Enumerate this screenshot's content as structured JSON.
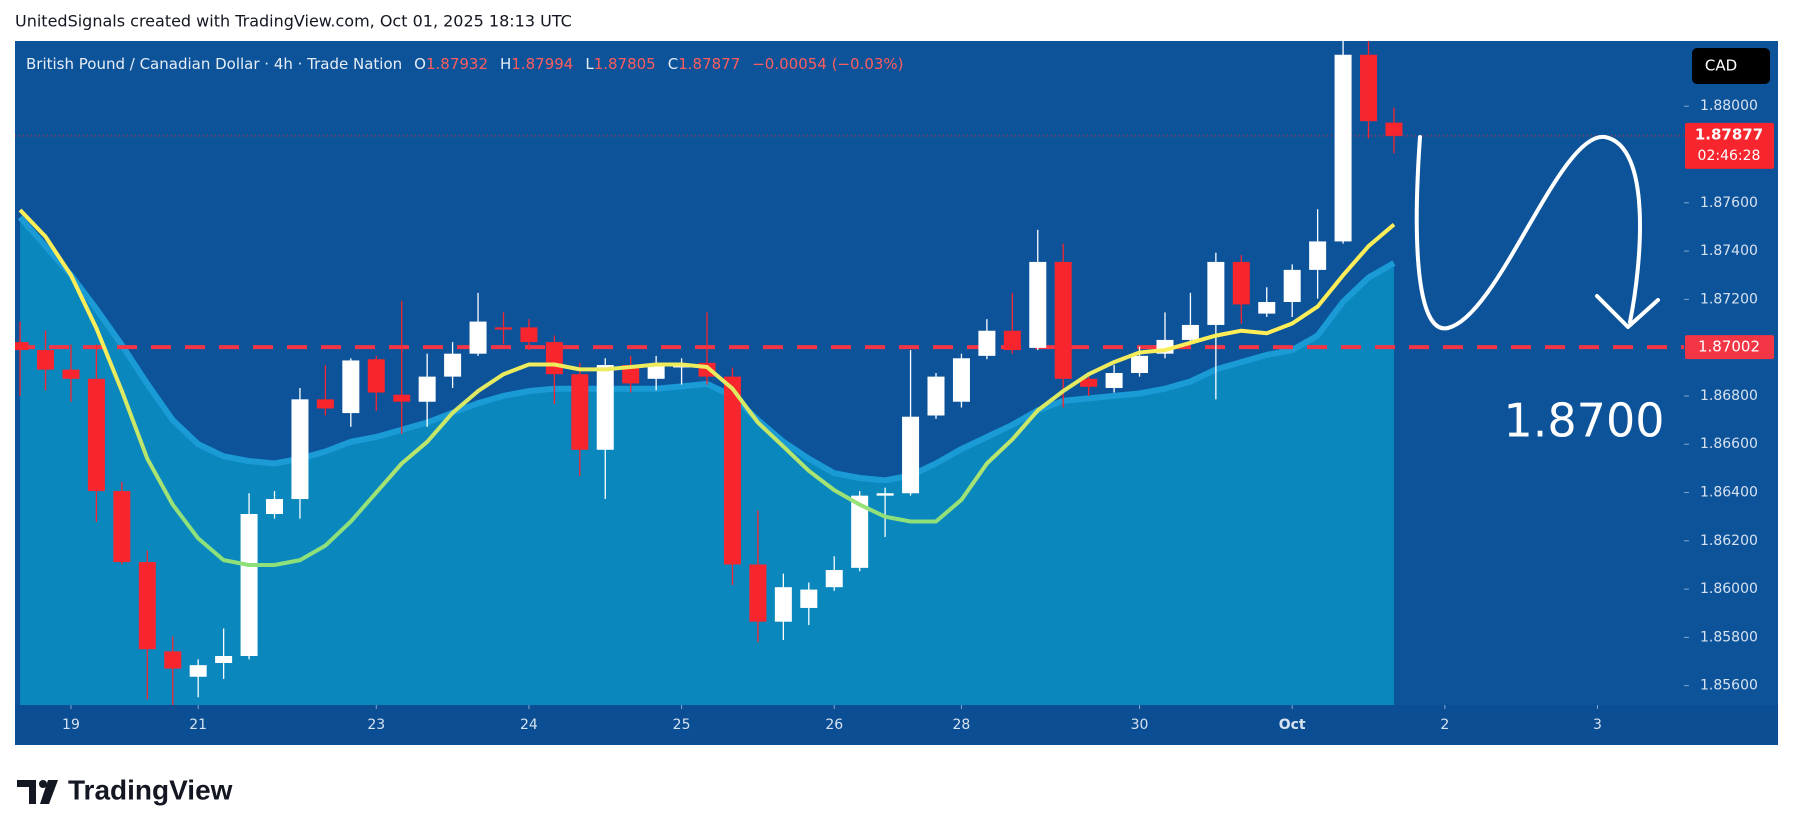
{
  "header": "UnitedSignals created with TradingView.com, Oct 01, 2025 18:13 UTC",
  "logo": "TradingView",
  "chart_data": {
    "type": "candlestick",
    "title": "British Pound / Canadian Dollar · 4h · Trade Nation",
    "ohlc_labels": [
      "O",
      "H",
      "L",
      "C"
    ],
    "change": "−0.00054 (−0.03%)",
    "currency": "CAD",
    "countdown": "02:46:28",
    "up_color": "#ffffff",
    "down_color": "#f7252d",
    "open": [
      1.87023,
      1.8699,
      1.86909,
      1.86871,
      1.86406,
      1.86112,
      1.85742,
      1.85637,
      1.85694,
      1.85723,
      1.86311,
      1.86373,
      1.86786,
      1.86729,
      1.86952,
      1.86805,
      1.86776,
      1.8688,
      1.86975,
      1.87084,
      1.87084,
      1.87023,
      1.8689,
      1.86577,
      1.86928,
      1.86871,
      1.86918,
      1.86937,
      1.8688,
      1.86102,
      1.85865,
      1.85922,
      1.86008,
      1.86088,
      1.86387,
      1.86397,
      1.86719,
      1.86776,
      1.86966,
      1.8707,
      1.86999,
      1.87355,
      1.86871,
      1.86833,
      1.86895,
      1.86975,
      1.87032,
      1.87094,
      1.87355,
      1.87141,
      1.87189,
      1.87322,
      1.8744,
      1.88213,
      1.87932
    ],
    "high": [
      1.87108,
      1.8707,
      1.87013,
      1.87013,
      1.86444,
      1.86159,
      1.85804,
      1.85709,
      1.85837,
      1.86397,
      1.86406,
      1.86833,
      1.86928,
      1.86956,
      1.86966,
      1.87194,
      1.86975,
      1.87023,
      1.87227,
      1.87146,
      1.87118,
      1.87051,
      1.86937,
      1.86956,
      1.86966,
      1.86966,
      1.86956,
      1.87146,
      1.86918,
      1.86325,
      1.86064,
      1.86027,
      1.86136,
      1.86406,
      1.8642,
      1.8699,
      1.86895,
      1.86975,
      1.87118,
      1.87227,
      1.87488,
      1.87431,
      1.8688,
      1.86928,
      1.87004,
      1.87146,
      1.87227,
      1.87393,
      1.87383,
      1.8725,
      1.87345,
      1.87573,
      1.8827,
      1.8827,
      1.87994
    ],
    "low": [
      1.868,
      1.86823,
      1.86776,
      1.86278,
      1.86102,
      1.85543,
      1.85519,
      1.85552,
      1.85628,
      1.85709,
      1.86292,
      1.86292,
      1.86719,
      1.86672,
      1.86738,
      1.86643,
      1.86672,
      1.86833,
      1.86966,
      1.87013,
      1.8699,
      1.86767,
      1.86468,
      1.86373,
      1.86814,
      1.86823,
      1.86847,
      1.86847,
      1.86017,
      1.8578,
      1.85789,
      1.85851,
      1.85993,
      1.86074,
      1.86216,
      1.86387,
      1.86705,
      1.86752,
      1.86952,
      1.86975,
      1.8699,
      1.86752,
      1.868,
      1.86814,
      1.8688,
      1.86956,
      1.87013,
      1.86786,
      1.87099,
      1.87127,
      1.87127,
      1.87203,
      1.87431,
      1.87867,
      1.87805
    ],
    "close": [
      1.8699,
      1.86909,
      1.86871,
      1.86406,
      1.86112,
      1.85751,
      1.85671,
      1.85685,
      1.85723,
      1.86311,
      1.86373,
      1.86786,
      1.86748,
      1.86947,
      1.86814,
      1.86776,
      1.8688,
      1.86975,
      1.87108,
      1.87075,
      1.87023,
      1.8689,
      1.86577,
      1.86928,
      1.86852,
      1.86928,
      1.86928,
      1.8688,
      1.86102,
      1.85865,
      1.86008,
      1.85998,
      1.86079,
      1.86387,
      1.86397,
      1.86714,
      1.8688,
      1.86956,
      1.8707,
      1.8699,
      1.87355,
      1.86871,
      1.86838,
      1.86895,
      1.86966,
      1.87032,
      1.87094,
      1.87355,
      1.87179,
      1.87189,
      1.87322,
      1.8744,
      1.88213,
      1.87938,
      1.87877
    ],
    "ma": {
      "colors": [
        "#ffee58",
        "#8ee07a"
      ],
      "values": [
        1.8757,
        1.8746,
        1.873,
        1.8708,
        1.8682,
        1.8654,
        1.8635,
        1.8621,
        1.8612,
        1.861,
        1.861,
        1.8612,
        1.8618,
        1.8628,
        1.864,
        1.8652,
        1.8661,
        1.8673,
        1.8682,
        1.8689,
        1.8693,
        1.8693,
        1.8691,
        1.8691,
        1.8692,
        1.8693,
        1.8693,
        1.8692,
        1.8683,
        1.8669,
        1.8659,
        1.8649,
        1.8641,
        1.8635,
        1.863,
        1.8628,
        1.8628,
        1.8637,
        1.8652,
        1.8662,
        1.8674,
        1.8682,
        1.8689,
        1.8694,
        1.8698,
        1.8699,
        1.8702,
        1.8705,
        1.8707,
        1.8706,
        1.871,
        1.8717,
        1.873,
        1.8742,
        1.8751
      ]
    },
    "band": {
      "color": "#0a87bd",
      "line_color": "#1a9bd6",
      "values": [
        1.8754,
        1.8742,
        1.873,
        1.8716,
        1.8701,
        1.8685,
        1.867,
        1.866,
        1.8655,
        1.8653,
        1.8652,
        1.8654,
        1.8657,
        1.8661,
        1.8663,
        1.8666,
        1.8669,
        1.8673,
        1.8677,
        1.868,
        1.8682,
        1.8683,
        1.8683,
        1.8683,
        1.8683,
        1.8683,
        1.8684,
        1.8685,
        1.868,
        1.867,
        1.8661,
        1.8654,
        1.8648,
        1.8646,
        1.8645,
        1.8647,
        1.8652,
        1.8658,
        1.8663,
        1.8668,
        1.8674,
        1.8678,
        1.8679,
        1.868,
        1.8681,
        1.8683,
        1.8686,
        1.8691,
        1.8694,
        1.8697,
        1.8699,
        1.8705,
        1.8719,
        1.8729,
        1.8735
      ]
    },
    "level": 1.87002,
    "level_color": "#f23645",
    "annotation": "1.8700",
    "xlim": [
      -0.2,
      65.4
    ],
    "xticks": [
      {
        "value": 2,
        "label": "19"
      },
      {
        "value": 7,
        "label": "21"
      },
      {
        "value": 14,
        "label": "23"
      },
      {
        "value": 20,
        "label": "24"
      },
      {
        "value": 26,
        "label": "25"
      },
      {
        "value": 32,
        "label": "26"
      },
      {
        "value": 37,
        "label": "28"
      },
      {
        "value": 44,
        "label": "30"
      },
      {
        "value": 50,
        "label": "Oct"
      },
      {
        "value": 56,
        "label": "2"
      },
      {
        "value": 62,
        "label": "3"
      }
    ],
    "ylim": [
      1.8552,
      1.8827
    ],
    "yticks": [
      {
        "value": 1.856,
        "label": "1.85600"
      },
      {
        "value": 1.858,
        "label": "1.85800"
      },
      {
        "value": 1.86,
        "label": "1.86000"
      },
      {
        "value": 1.862,
        "label": "1.86200"
      },
      {
        "value": 1.864,
        "label": "1.86400"
      },
      {
        "value": 1.866,
        "label": "1.86600"
      },
      {
        "value": 1.868,
        "label": "1.86800"
      },
      {
        "value": 1.872,
        "label": "1.87200"
      },
      {
        "value": 1.874,
        "label": "1.87400"
      },
      {
        "value": 1.876,
        "label": "1.87600"
      },
      {
        "value": 1.88,
        "label": "1.88000"
      }
    ]
  }
}
